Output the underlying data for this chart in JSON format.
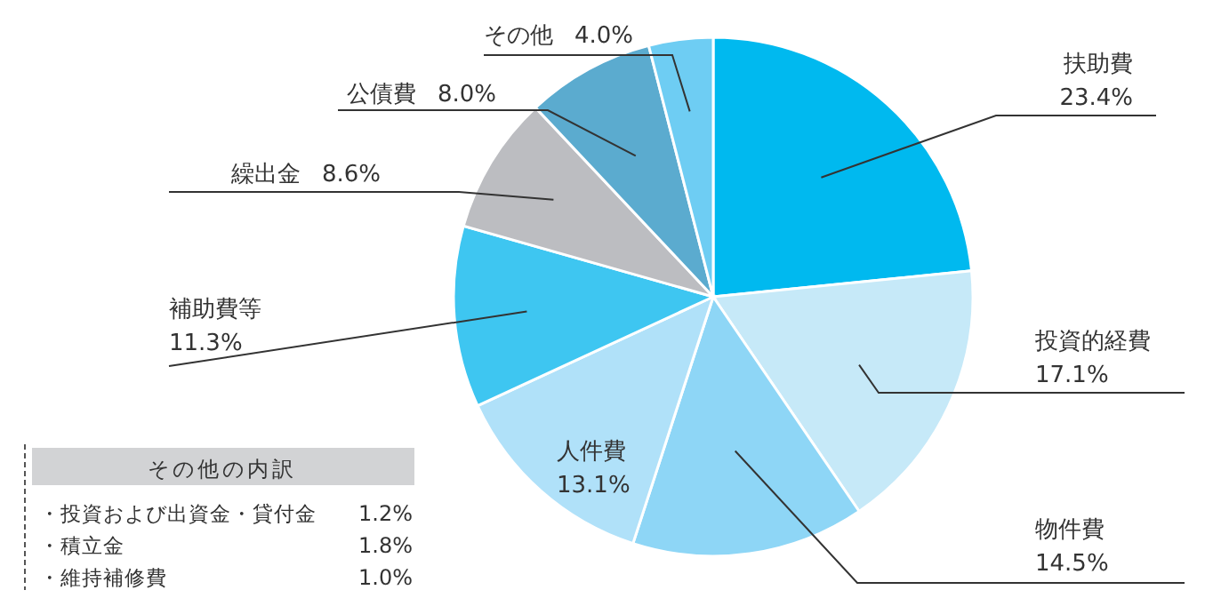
{
  "chart_data": {
    "type": "pie",
    "categories": [
      "扶助費",
      "投資的経費",
      "物件費",
      "人件費",
      "補助費等",
      "繰出金",
      "公債費",
      "その他"
    ],
    "values": [
      23.4,
      17.1,
      14.5,
      13.1,
      11.3,
      8.6,
      8.0,
      4.0
    ],
    "value_labels": [
      "23.4%",
      "17.1%",
      "14.5%",
      "13.1%",
      "11.3%",
      "8.6%",
      "8.0%",
      "4.0%"
    ],
    "colors": [
      "#00b9ef",
      "#c6e9f8",
      "#8ed6f6",
      "#b0e1f9",
      "#3ec6f1",
      "#bcbdc1",
      "#5babcf",
      "#6ecdf3"
    ],
    "annotations": [
      "その他の内訳",
      "・投資および出資金・貸付金",
      "1.2%",
      "・積立金",
      "1.8%",
      "・維持補修費",
      "1.0%"
    ]
  }
}
